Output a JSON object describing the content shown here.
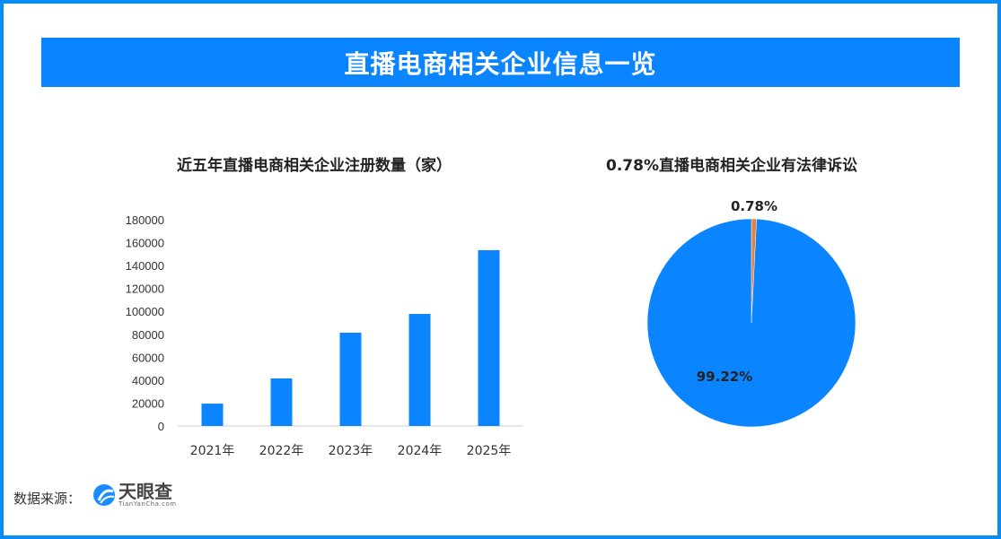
{
  "title": "直播电商相关企业信息一览",
  "chart_data": [
    {
      "type": "bar",
      "title": "近五年直播电商相关企业注册数量（家）",
      "categories": [
        "2021年",
        "2022年",
        "2023年",
        "2024年",
        "2025年"
      ],
      "values": [
        19500,
        41500,
        81400,
        97800,
        153400
      ],
      "ylim": [
        0,
        180000
      ],
      "yticks": [
        0,
        20000,
        40000,
        60000,
        80000,
        100000,
        120000,
        140000,
        160000,
        180000
      ],
      "grid": false,
      "color": "#0a84ff"
    },
    {
      "type": "pie",
      "title": "0.78%直播电商相关企业有法律诉讼",
      "slices": [
        {
          "label": "0.78%",
          "value": 0.78,
          "color": "#ed7d31"
        },
        {
          "label": "99.22%",
          "value": 99.22,
          "color": "#0a84ff"
        }
      ]
    }
  ],
  "footer": {
    "source_label": "数据来源：",
    "logo_name": "天眼查",
    "logo_sub": "TianYanCha.com"
  }
}
